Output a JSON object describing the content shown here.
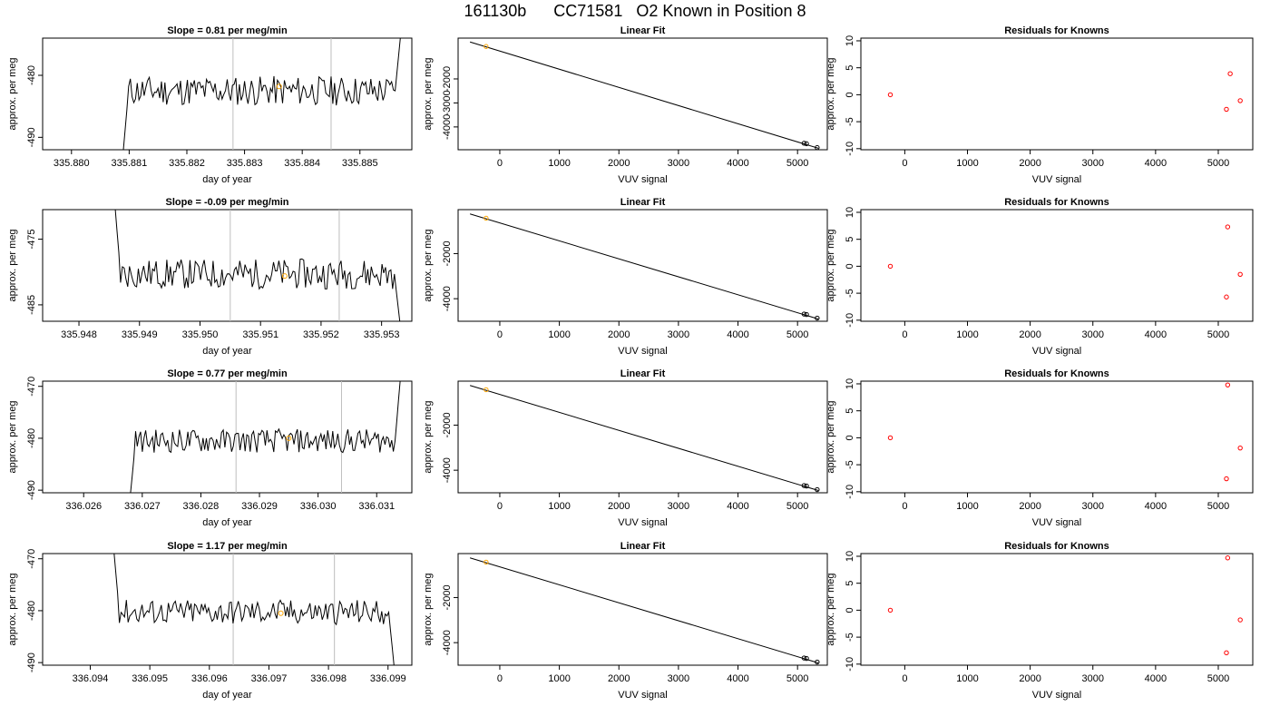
{
  "header": {
    "run_id": "161130b",
    "cylinder": "CC71581",
    "position_text": "O2 Known in Position  8"
  },
  "colors": {
    "trace": "#000000",
    "marker": "#ffa500",
    "residual": "#ff0000",
    "vline": "#bebebe"
  },
  "chart_data": [
    {
      "type": "line",
      "panel": "time-series-row-1",
      "title": "Slope =  0.81  per meg/min",
      "xlabel": "day of year",
      "ylabel": "approx. per meg",
      "xticks": [
        "335.880",
        "335.881",
        "335.882",
        "335.883",
        "335.884",
        "335.885"
      ],
      "yticks": [
        "-490",
        "-480"
      ],
      "xlim": [
        335.8795,
        335.8859
      ],
      "ylim": [
        -492,
        -474
      ],
      "vlines": [
        335.8828,
        335.8845
      ],
      "start_x": 335.8809,
      "end_x": 335.8857,
      "mean": -482.5,
      "amplitude": 2.4,
      "start_y": -492,
      "end_y": -474,
      "marker": {
        "x": 335.8836,
        "y": -481.8
      }
    },
    {
      "type": "scatter",
      "panel": "linear-fit-row-1",
      "title": "Linear Fit",
      "xlabel": "VUV signal",
      "ylabel": "approx. per meg",
      "xticks": [
        "0",
        "1000",
        "2000",
        "3000",
        "4000",
        "5000"
      ],
      "yticks": [
        "-4000",
        "-3000",
        "-2000"
      ],
      "xlim": [
        -700,
        5500
      ],
      "ylim": [
        -4950,
        -300
      ],
      "fit_line": {
        "x": [
          -500,
          5350
        ],
        "y": [
          -460,
          -4890
        ]
      },
      "points": [
        {
          "x": -230,
          "y": -650,
          "color": "orange"
        },
        {
          "x": 5110,
          "y": -4680
        },
        {
          "x": 5150,
          "y": -4700
        },
        {
          "x": 5330,
          "y": -4860
        }
      ]
    },
    {
      "type": "scatter",
      "panel": "residuals-row-1",
      "title": "Residuals for Knowns",
      "xlabel": "VUV signal",
      "ylabel": "approx. per meg",
      "xticks": [
        "0",
        "1000",
        "2000",
        "3000",
        "4000",
        "5000"
      ],
      "yticks": [
        "-10",
        "-5",
        "0",
        "5",
        "10"
      ],
      "xlim": [
        -700,
        5550
      ],
      "ylim": [
        -10.2,
        10.5
      ],
      "points": [
        {
          "x": -230,
          "y": 0.0
        },
        {
          "x": 5130,
          "y": -2.7
        },
        {
          "x": 5190,
          "y": 3.9
        },
        {
          "x": 5350,
          "y": -1.1
        }
      ]
    },
    {
      "type": "line",
      "panel": "time-series-row-2",
      "title": "Slope =  -0.09  per meg/min",
      "xlabel": "day of year",
      "ylabel": "approx. per meg",
      "xticks": [
        "335.948",
        "335.949",
        "335.950",
        "335.951",
        "335.952",
        "335.953"
      ],
      "yticks": [
        "-485",
        "-475"
      ],
      "xlim": [
        335.9474,
        335.9535
      ],
      "ylim": [
        -487.5,
        -470.5
      ],
      "vlines": [
        335.9505,
        335.9523
      ],
      "start_x": 335.9486,
      "end_x": 335.9533,
      "mean": -480.3,
      "amplitude": 2.3,
      "start_y": -470.5,
      "end_y": -487.5,
      "marker": {
        "x": 335.9514,
        "y": -480.6
      }
    },
    {
      "type": "scatter",
      "panel": "linear-fit-row-2",
      "title": "Linear Fit",
      "xlabel": "VUV signal",
      "ylabel": "approx. per meg",
      "xticks": [
        "0",
        "1000",
        "2000",
        "3000",
        "4000",
        "5000"
      ],
      "yticks": [
        "-4000",
        "-2000"
      ],
      "xlim": [
        -700,
        5500
      ],
      "ylim": [
        -5000,
        -50
      ],
      "fit_line": {
        "x": [
          -500,
          5350
        ],
        "y": [
          -240,
          -4900
        ]
      },
      "points": [
        {
          "x": -230,
          "y": -430,
          "color": "orange"
        },
        {
          "x": 5110,
          "y": -4680
        },
        {
          "x": 5150,
          "y": -4700
        },
        {
          "x": 5330,
          "y": -4860
        }
      ]
    },
    {
      "type": "scatter",
      "panel": "residuals-row-2",
      "title": "Residuals for Knowns",
      "xlabel": "VUV signal",
      "ylabel": "approx. per meg",
      "xticks": [
        "0",
        "1000",
        "2000",
        "3000",
        "4000",
        "5000"
      ],
      "yticks": [
        "-10",
        "-5",
        "0",
        "5",
        "10"
      ],
      "xlim": [
        -700,
        5550
      ],
      "ylim": [
        -10.2,
        10.5
      ],
      "points": [
        {
          "x": -230,
          "y": 0.0
        },
        {
          "x": 5130,
          "y": -5.7
        },
        {
          "x": 5150,
          "y": 7.3
        },
        {
          "x": 5350,
          "y": -1.5
        }
      ]
    },
    {
      "type": "line",
      "panel": "time-series-row-3",
      "title": "Slope =  0.77  per meg/min",
      "xlabel": "day of year",
      "ylabel": "approx. per meg",
      "xticks": [
        "336.026",
        "336.027",
        "336.028",
        "336.029",
        "336.030",
        "336.031"
      ],
      "yticks": [
        "-490",
        "-480",
        "-470"
      ],
      "xlim": [
        336.0253,
        336.0316
      ],
      "ylim": [
        -490.5,
        -469
      ],
      "vlines": [
        336.0286,
        336.0304
      ],
      "start_x": 336.0268,
      "end_x": 336.0314,
      "mean": -480.5,
      "amplitude": 2.3,
      "start_y": -490.5,
      "end_y": -469,
      "marker": {
        "x": 336.0295,
        "y": -480.0
      }
    },
    {
      "type": "scatter",
      "panel": "linear-fit-row-3",
      "title": "Linear Fit",
      "xlabel": "VUV signal",
      "ylabel": "approx. per meg",
      "xticks": [
        "0",
        "1000",
        "2000",
        "3000",
        "4000",
        "5000"
      ],
      "yticks": [
        "-4000",
        "-2000"
      ],
      "xlim": [
        -700,
        5500
      ],
      "ylim": [
        -5000,
        -50
      ],
      "fit_line": {
        "x": [
          -500,
          5350
        ],
        "y": [
          -240,
          -4900
        ]
      },
      "points": [
        {
          "x": -230,
          "y": -430,
          "color": "orange"
        },
        {
          "x": 5110,
          "y": -4680
        },
        {
          "x": 5150,
          "y": -4700
        },
        {
          "x": 5330,
          "y": -4860
        }
      ]
    },
    {
      "type": "scatter",
      "panel": "residuals-row-3",
      "title": "Residuals for Knowns",
      "xlabel": "VUV signal",
      "ylabel": "approx. per meg",
      "xticks": [
        "0",
        "1000",
        "2000",
        "3000",
        "4000",
        "5000"
      ],
      "yticks": [
        "-10",
        "-5",
        "0",
        "5",
        "10"
      ],
      "xlim": [
        -700,
        5550
      ],
      "ylim": [
        -10.2,
        10.5
      ],
      "points": [
        {
          "x": -230,
          "y": 0.0
        },
        {
          "x": 5130,
          "y": -7.6
        },
        {
          "x": 5150,
          "y": 9.8
        },
        {
          "x": 5350,
          "y": -1.9
        }
      ]
    },
    {
      "type": "line",
      "panel": "time-series-row-4",
      "title": "Slope =  1.17  per meg/min",
      "xlabel": "day of year",
      "ylabel": "approx. per meg",
      "xticks": [
        "336.094",
        "336.095",
        "336.096",
        "336.097",
        "336.098",
        "336.099"
      ],
      "yticks": [
        "-490",
        "-480",
        "-470"
      ],
      "xlim": [
        336.0932,
        336.0994
      ],
      "ylim": [
        -490.5,
        -469
      ],
      "vlines": [
        336.0964,
        336.0981
      ],
      "start_x": 336.0944,
      "end_x": 336.0991,
      "mean": -480.3,
      "amplitude": 2.4,
      "start_y": -469,
      "end_y": -490.5,
      "marker": {
        "x": 336.0972,
        "y": -480.5
      }
    },
    {
      "type": "scatter",
      "panel": "linear-fit-row-4",
      "title": "Linear Fit",
      "xlabel": "VUV signal",
      "ylabel": "approx. per meg",
      "xticks": [
        "0",
        "1000",
        "2000",
        "3000",
        "4000",
        "5000"
      ],
      "yticks": [
        "-4000",
        "-2000"
      ],
      "xlim": [
        -700,
        5500
      ],
      "ylim": [
        -5000,
        -50
      ],
      "fit_line": {
        "x": [
          -500,
          5350
        ],
        "y": [
          -240,
          -4900
        ]
      },
      "points": [
        {
          "x": -230,
          "y": -430,
          "color": "orange"
        },
        {
          "x": 5110,
          "y": -4680
        },
        {
          "x": 5150,
          "y": -4700
        },
        {
          "x": 5330,
          "y": -4860
        }
      ]
    },
    {
      "type": "scatter",
      "panel": "residuals-row-4",
      "title": "Residuals for Knowns",
      "xlabel": "VUV signal",
      "ylabel": "approx. per meg",
      "xticks": [
        "0",
        "1000",
        "2000",
        "3000",
        "4000",
        "5000"
      ],
      "yticks": [
        "-10",
        "-5",
        "0",
        "5",
        "10"
      ],
      "xlim": [
        -700,
        5550
      ],
      "ylim": [
        -10.2,
        10.5
      ],
      "points": [
        {
          "x": -230,
          "y": 0.0
        },
        {
          "x": 5130,
          "y": -7.9
        },
        {
          "x": 5150,
          "y": 9.7
        },
        {
          "x": 5350,
          "y": -1.8
        }
      ]
    }
  ]
}
